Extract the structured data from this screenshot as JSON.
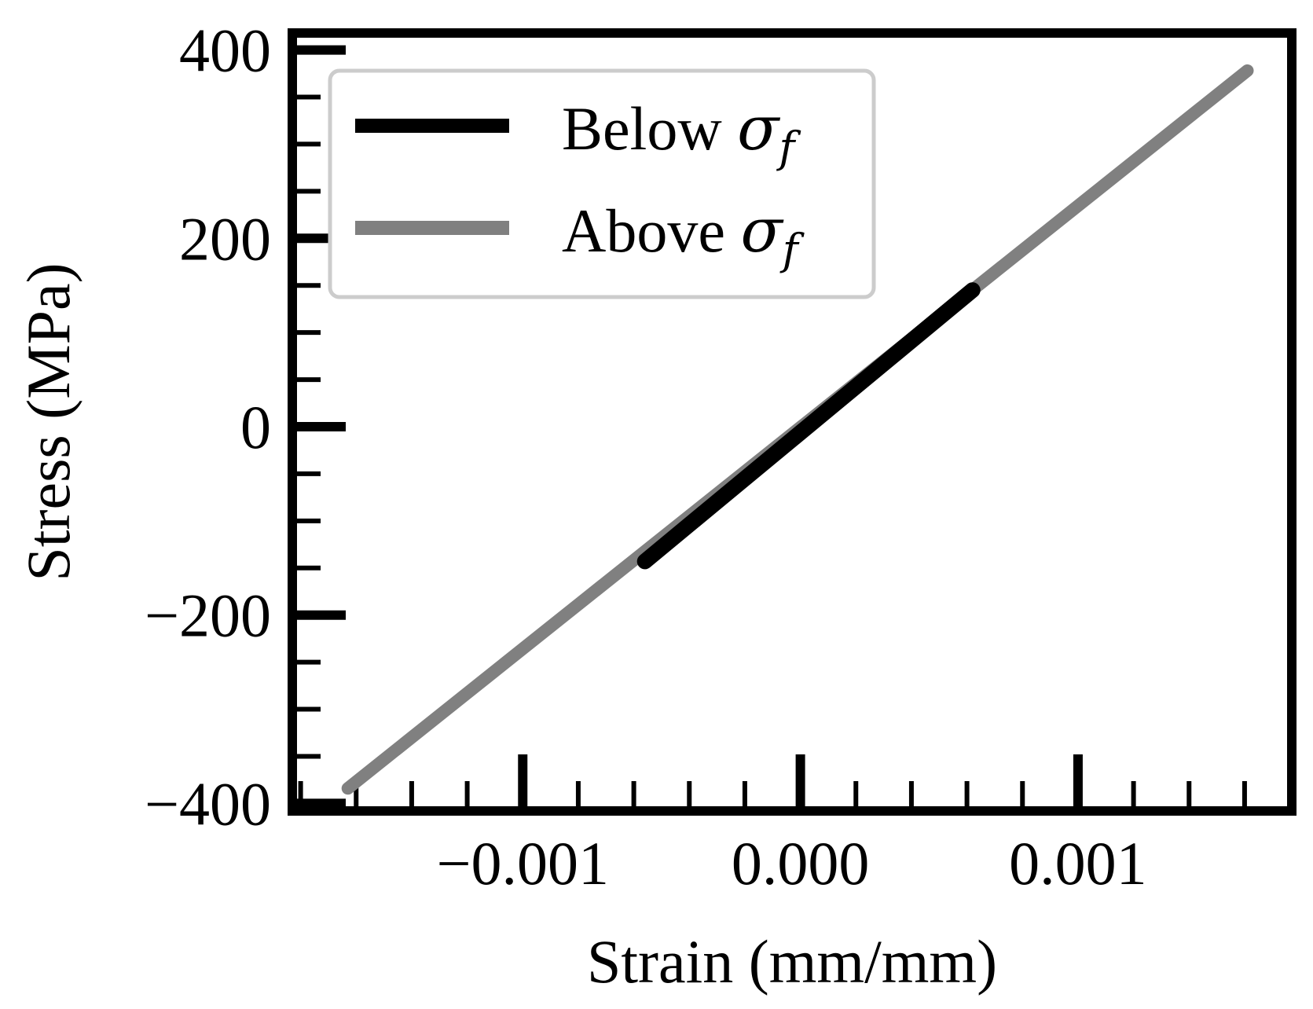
{
  "chart_data": {
    "type": "line",
    "xlabel": "Strain (mm/mm)",
    "ylabel": "Stress (MPa)",
    "xlim": [
      -0.00183,
      0.00177
    ],
    "ylim": [
      -408,
      418
    ],
    "x_ticks": [
      -0.001,
      0.0,
      0.001
    ],
    "x_tick_labels": [
      "−0.001",
      "0.000",
      "0.001"
    ],
    "y_ticks": [
      -400,
      -200,
      0,
      200,
      400
    ],
    "y_tick_labels": [
      "−400",
      "−200",
      "0",
      "200",
      "400"
    ],
    "x_minor_step": 0.0002,
    "y_minor_step": 50,
    "grid": false,
    "legend_position": "top-left",
    "series": [
      {
        "name": "Below σf",
        "label_main": "Below ",
        "label_symbol": "σ",
        "label_subscript": "f",
        "color": "#000000",
        "points": [
          [
            -0.00056,
            -143
          ],
          [
            0.00062,
            145
          ]
        ]
      },
      {
        "name": "Above σf",
        "label_main": "Above ",
        "label_symbol": "σ",
        "label_subscript": "f",
        "color": "#808080",
        "points": [
          [
            -0.00163,
            -384
          ],
          [
            0.00161,
            378
          ]
        ]
      }
    ]
  }
}
